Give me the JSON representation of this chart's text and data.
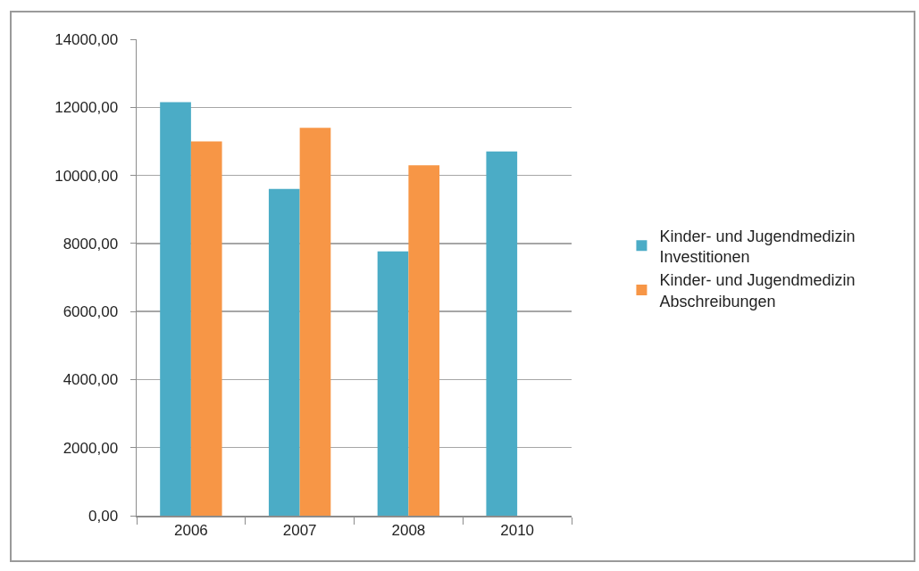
{
  "chart_data": {
    "type": "bar",
    "categories": [
      "2006",
      "2007",
      "2008",
      "2010"
    ],
    "series": [
      {
        "name": "Kinder- und Jugendmedizin Investitionen",
        "color": "#4bacc6",
        "values": [
          12150,
          9600,
          7770,
          10700
        ]
      },
      {
        "name": "Kinder- und Jugendmedizin Abschreibungen",
        "color": "#f79646",
        "values": [
          11000,
          11400,
          10300,
          null
        ]
      }
    ],
    "ylim": [
      0,
      14000
    ],
    "yticks": [
      {
        "value": 0,
        "label": "0,00"
      },
      {
        "value": 2000,
        "label": "2000,00"
      },
      {
        "value": 4000,
        "label": "4000,00"
      },
      {
        "value": 6000,
        "label": "6000,00"
      },
      {
        "value": 8000,
        "label": "8000,00"
      },
      {
        "value": 10000,
        "label": "10000,00"
      },
      {
        "value": 12000,
        "label": "12000,00"
      },
      {
        "value": 14000,
        "label": "14000,00"
      }
    ],
    "grid": "y",
    "legend": "right"
  }
}
